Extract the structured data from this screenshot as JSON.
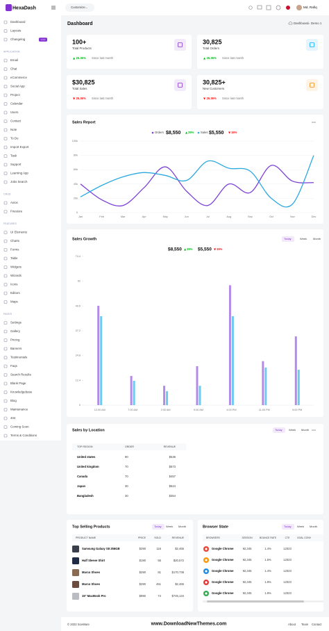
{
  "header": {
    "logo": "HexaDash",
    "customize": "Customize...",
    "user": "Md. Rafiq"
  },
  "sidebar": {
    "items": [
      "Dashboard",
      "Layouts",
      "Changelog"
    ],
    "badge": "1.0.0",
    "sections": [
      {
        "title": "APPLICATION",
        "items": [
          "Email",
          "Chat",
          "eCommerce",
          "Social App",
          "Project",
          "Calendar",
          "Users",
          "Contact",
          "Note",
          "To Do",
          "Import Export",
          "Task",
          "Support",
          "Learning App",
          "Jobs Search"
        ]
      },
      {
        "title": "CRUD",
        "items": [
          "Axios",
          "Firestore"
        ]
      },
      {
        "title": "FEATURES",
        "items": [
          "UI Elements",
          "Charts",
          "Forms",
          "Table",
          "Widgets",
          "Wizards",
          "Icons",
          "Editors",
          "Maps"
        ]
      },
      {
        "title": "PAGES",
        "items": [
          "Settings",
          "Gallery",
          "Pricing",
          "Banners",
          "Testimonials",
          "Faqs",
          "Search Results",
          "Blank Page",
          "Knowledgebase",
          "Blog",
          "Maintenance",
          "404",
          "Coming Soon",
          "Terms & Conditions"
        ]
      }
    ]
  },
  "page": {
    "title": "Dashboard",
    "breadcrumb": [
      "Dashboard",
      "Demo 1"
    ]
  },
  "stats": [
    {
      "value": "100+",
      "label": "Total Products",
      "change": "25.36%",
      "note": "Since last month",
      "trend": "up"
    },
    {
      "value": "30,825",
      "label": "Total Orders",
      "change": "25.36%",
      "note": "Since last month",
      "trend": "up"
    },
    {
      "value": "$30,825",
      "label": "Total Sales",
      "change": "25.36%",
      "note": "Since last month",
      "trend": "down"
    },
    {
      "value": "30,825+",
      "label": "New Customers",
      "change": "25.36%",
      "note": "Since last month",
      "trend": "down"
    }
  ],
  "sales_report": {
    "title": "Sales Report",
    "chart": {
      "type": "line",
      "categories": [
        "Jan",
        "Feb",
        "Mar",
        "Apr",
        "May",
        "Jun",
        "Jul",
        "Aug",
        "Sep",
        "Oct",
        "Nov",
        "Dec"
      ],
      "series": [
        {
          "name": "Orders",
          "color": "#7b3fd6",
          "total": "$8,550",
          "change": "25%",
          "trend": "up",
          "values": [
            40000,
            18000,
            10000,
            35000,
            64000,
            30000,
            10000,
            40000,
            28000,
            66000,
            44000,
            42000
          ]
        },
        {
          "name": "Sales",
          "color": "#2aa8e0",
          "total": "$5,550",
          "change": "15%",
          "trend": "down",
          "values": [
            22000,
            38000,
            50000,
            56000,
            52000,
            45000,
            72000,
            62000,
            58000,
            20000,
            12000,
            80000
          ]
        }
      ],
      "ylim": [
        0,
        100000
      ],
      "yticks": [
        0,
        {
          "value": 20000,
          "label": "20k"
        },
        {
          "value": 40000,
          "label": "40k"
        },
        {
          "value": 60000,
          "label": "60k"
        },
        {
          "value": 80000,
          "label": "80k"
        },
        {
          "value": 100000,
          "label": "100k"
        }
      ],
      "grid": true
    }
  },
  "sales_growth": {
    "title": "Sales Growth",
    "tabs": [
      "Today",
      "Week",
      "Month"
    ],
    "legend": [
      {
        "value": "$8,550",
        "change": "25%",
        "trend": "up"
      },
      {
        "value": "$5,550",
        "change": "15%",
        "trend": "down"
      }
    ],
    "chart": {
      "type": "bar",
      "categories": [
        "12:00 AM",
        "7:00 AM",
        "2:00 AM",
        "9:00 AM",
        "4:00 PM",
        "11:00 PM",
        "6:00 PM"
      ],
      "series": [
        {
          "color": "#b48ae8",
          "values": [
            49.7,
            14.6,
            9.7,
            19.5,
            60,
            22,
            34.4
          ]
        },
        {
          "color": "#6ccbef",
          "values": [
            44.5,
            12.2,
            7,
            9.7,
            44.5,
            18.8,
            17.7
          ]
        }
      ],
      "ylim": [
        0,
        74.4
      ],
      "yticks": [
        0,
        12.4,
        24.8,
        37.2,
        49.6,
        62,
        74.4
      ]
    }
  },
  "sales_by_location": {
    "title": "Sales by Location",
    "tabs": [
      "Today",
      "Week",
      "Month"
    ],
    "table": {
      "headers": [
        "TOP REGION",
        "ORDER",
        "REVENUE"
      ],
      "rows": [
        [
          "United states",
          "90",
          "$536"
        ],
        [
          "United kingdom",
          "70",
          "$573"
        ],
        [
          "Canada",
          "70",
          "$457"
        ],
        [
          "Japan",
          "30",
          "$524"
        ],
        [
          "Bangladesh",
          "30",
          "$354"
        ]
      ]
    }
  },
  "top_selling": {
    "title": "Top Selling Products",
    "tabs": [
      "Today",
      "Week",
      "Month"
    ],
    "table": {
      "headers": [
        "PRODUCT NAME",
        "PRICE",
        "SOLD",
        "REVENUE"
      ],
      "rows": [
        [
          "Samsung Galaxy S8 256GB",
          "$290",
          "116",
          "$2,465"
        ],
        [
          "Half Sleeve Shirt",
          "$190",
          "55",
          "$20,572"
        ],
        [
          "Marco Shoes",
          "$290",
          "81",
          "$170,738"
        ],
        [
          "Marco Shoes",
          "$290",
          "451",
          "$2,465"
        ],
        [
          "15\" MacBook Pro",
          "$990",
          "74",
          "$745,134"
        ]
      ]
    }
  },
  "browser_state": {
    "title": "Browser State",
    "tabs": [
      "Today",
      "Week",
      "Month"
    ],
    "table": {
      "headers": [
        "BROWSERS",
        "SESSION",
        "BOUNCE RATE",
        "CTE",
        "GOAL CONV"
      ],
      "rows": [
        [
          "Google Chrome",
          "92,345",
          "1.4%",
          "12023"
        ],
        [
          "Google Chrome",
          "92,345",
          "1.5%",
          "12023"
        ],
        [
          "Google Chrome",
          "92,345",
          "1.4%",
          "12023"
        ],
        [
          "Google Chrome",
          "92,345",
          "1.8%",
          "12023"
        ],
        [
          "Google Chrome",
          "92,345",
          "1.8%",
          "12023"
        ]
      ]
    }
  },
  "footer": {
    "copyright": "© 2022 SovWare",
    "links": [
      "About",
      "Team",
      "Contact"
    ],
    "watermark": "www.DownloadNewThemes.com"
  }
}
